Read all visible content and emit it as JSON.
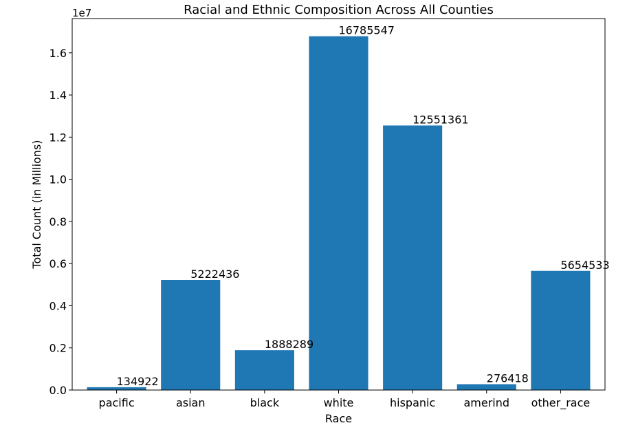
{
  "chart_data": {
    "type": "bar",
    "title": "Racial and Ethnic Composition Across All Counties",
    "xlabel": "Race",
    "ylabel": "Total Count (in Millions)",
    "offset_label": "1e7",
    "categories": [
      "pacific",
      "asian",
      "black",
      "white",
      "hispanic",
      "amerind",
      "other_race"
    ],
    "values": [
      134922,
      5222436,
      1888289,
      16785547,
      12551361,
      276418,
      5654533
    ],
    "data_labels": [
      "134922",
      "5222436",
      "1888289",
      "16785547",
      "12551361",
      "276418",
      "5654533"
    ],
    "ylim": [
      0,
      17624824
    ],
    "yticks": [
      0,
      2000000,
      4000000,
      6000000,
      8000000,
      10000000,
      12000000,
      14000000,
      16000000
    ],
    "ytick_labels": [
      "0.0",
      "0.2",
      "0.4",
      "0.6",
      "0.8",
      "1.0",
      "1.2",
      "1.4",
      "1.6"
    ],
    "grid": false,
    "legend": "none",
    "bar_color": "#1f77b4"
  }
}
